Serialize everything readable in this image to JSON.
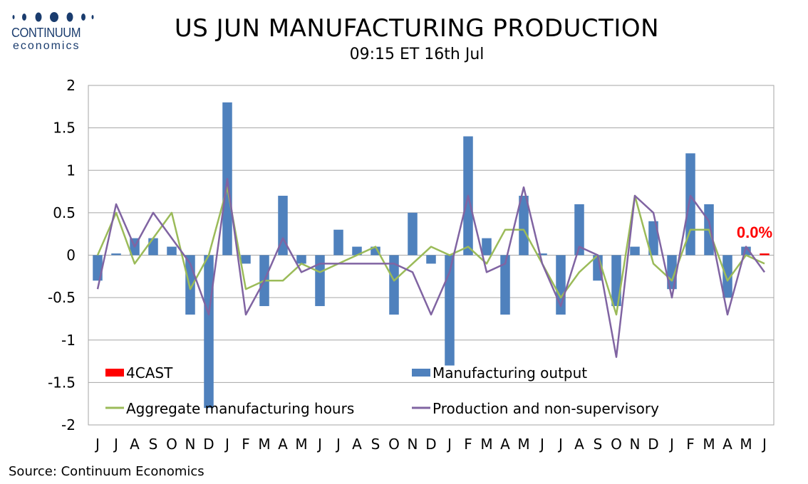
{
  "header": {
    "title": "US JUN MANUFACTURING PRODUCTION",
    "subtitle": "09:15 ET 16th Jul"
  },
  "logo": {
    "name": "CONTINUUM",
    "sub": "economics",
    "color": "#1a3c6e"
  },
  "footer": {
    "source": "Source: Continuum Economics"
  },
  "chart_data": {
    "type": "bar",
    "ylim": [
      -2,
      2
    ],
    "yticks": [
      "2",
      "1.5",
      "1",
      "0.5",
      "0",
      "-0.5",
      "-1",
      "-1.5",
      "-2"
    ],
    "ytick_values": [
      2,
      1.5,
      1,
      0.5,
      0,
      -0.5,
      -1,
      -1.5,
      -2
    ],
    "grid": true,
    "legend_placement": "bottom",
    "categories": [
      "J",
      "J",
      "A",
      "S",
      "O",
      "N",
      "D",
      "J",
      "F",
      "M",
      "A",
      "M",
      "J",
      "J",
      "A",
      "S",
      "O",
      "N",
      "D",
      "J",
      "F",
      "M",
      "A",
      "M",
      "J",
      "J",
      "A",
      "S",
      "O",
      "N",
      "D",
      "J",
      "F",
      "M",
      "A",
      "M",
      "J"
    ],
    "series": [
      {
        "name": "Manufacturing output",
        "kind": "bar",
        "color": "#4f81bd",
        "values": [
          -0.3,
          0.02,
          0.2,
          0.2,
          0.1,
          -0.7,
          -1.8,
          1.8,
          -0.1,
          -0.6,
          0.7,
          -0.1,
          -0.6,
          0.3,
          0.1,
          0.1,
          -0.7,
          0.5,
          -0.1,
          -1.3,
          1.4,
          0.2,
          -0.7,
          0.7,
          0.02,
          -0.7,
          0.6,
          -0.3,
          -0.6,
          0.1,
          0.4,
          -0.4,
          1.2,
          0.6,
          -0.5,
          0.1,
          null
        ]
      },
      {
        "name": "4CAST",
        "kind": "bar",
        "color": "#ff0000",
        "values": [
          null,
          null,
          null,
          null,
          null,
          null,
          null,
          null,
          null,
          null,
          null,
          null,
          null,
          null,
          null,
          null,
          null,
          null,
          null,
          null,
          null,
          null,
          null,
          null,
          null,
          null,
          null,
          null,
          null,
          null,
          null,
          null,
          null,
          null,
          null,
          null,
          0.02
        ]
      },
      {
        "name": "Aggregate manufacturing hours",
        "kind": "line",
        "color": "#9bbb59",
        "values": [
          0.0,
          0.5,
          -0.1,
          0.2,
          0.5,
          -0.4,
          0.0,
          0.8,
          -0.4,
          -0.3,
          -0.3,
          -0.1,
          -0.2,
          -0.1,
          0.0,
          0.1,
          -0.3,
          -0.1,
          0.1,
          0.0,
          0.1,
          -0.1,
          0.3,
          0.3,
          -0.1,
          -0.5,
          -0.2,
          0.0,
          -0.7,
          0.7,
          -0.1,
          -0.3,
          0.3,
          0.3,
          -0.3,
          0.0,
          -0.1
        ]
      },
      {
        "name": "Production and non-supervisory",
        "kind": "line",
        "color": "#8064a2",
        "values": [
          -0.4,
          0.6,
          0.1,
          0.5,
          0.2,
          -0.1,
          -0.7,
          0.9,
          -0.7,
          -0.3,
          0.2,
          -0.2,
          -0.1,
          -0.1,
          -0.1,
          -0.1,
          -0.1,
          -0.2,
          -0.7,
          -0.2,
          0.7,
          -0.2,
          -0.1,
          0.8,
          -0.1,
          -0.6,
          0.1,
          0.0,
          -1.2,
          0.7,
          0.5,
          -0.5,
          0.7,
          0.4,
          -0.7,
          0.1,
          -0.2
        ]
      }
    ],
    "annotation": {
      "text": "0.0%",
      "index": 36,
      "color": "#ff0000"
    }
  }
}
